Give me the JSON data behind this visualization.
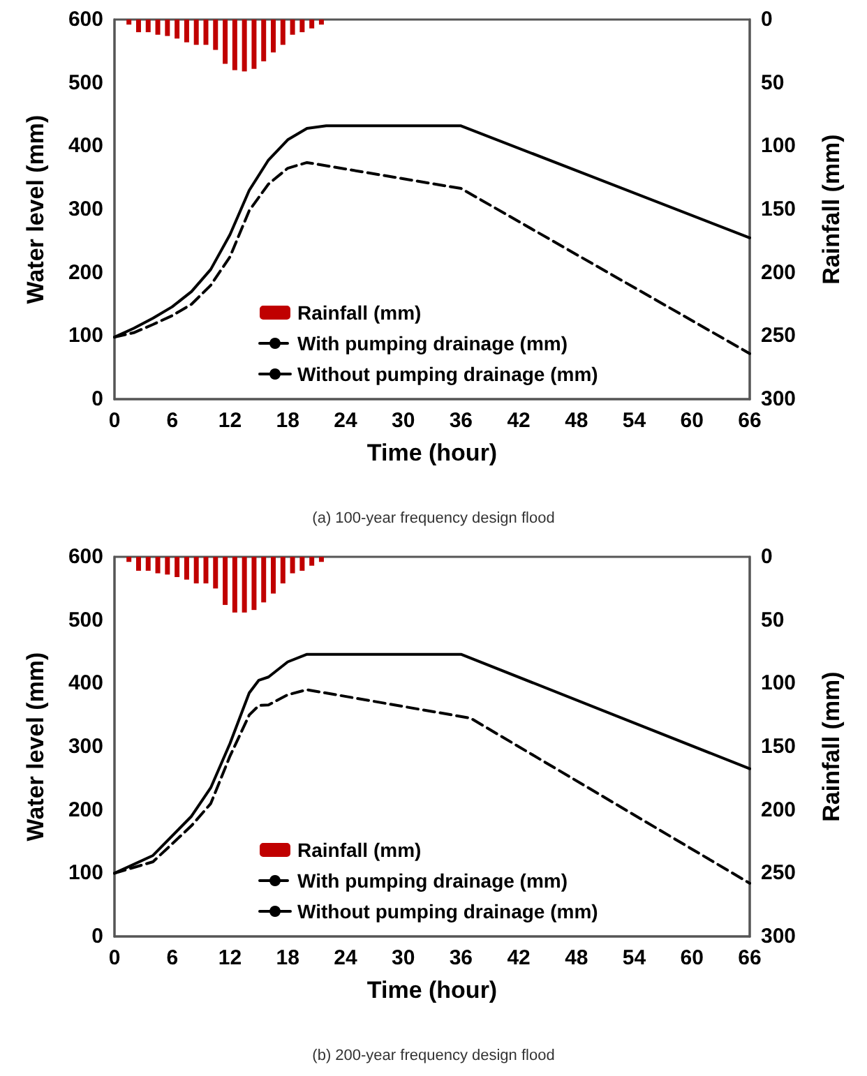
{
  "chart_data": [
    {
      "type": "line",
      "xlabel": "Time (hour)",
      "ylabel": "Water level (mm)",
      "y2label": "Rainfall (mm)",
      "xlim": [
        0,
        66
      ],
      "xticks": [
        0,
        6,
        12,
        18,
        24,
        30,
        36,
        42,
        48,
        54,
        60,
        66
      ],
      "ylim": [
        0,
        600
      ],
      "yticks": [
        0,
        100,
        200,
        300,
        400,
        500,
        600
      ],
      "y2lim": [
        300,
        0
      ],
      "y2ticks": [
        0,
        50,
        100,
        150,
        200,
        250,
        300
      ],
      "legend": "bottom left",
      "grid": false,
      "marker": "none",
      "annotations": [
        "(a) 100-year frequency design flood"
      ],
      "series": [
        {
          "name": "Rainfall (mm)",
          "type": "bar",
          "axis": "y2",
          "color": "#c00000",
          "x": [
            1.5,
            2.5,
            3.5,
            4.5,
            5.5,
            6.5,
            7.5,
            8.5,
            9.5,
            10.5,
            11.5,
            12.5,
            13.5,
            14.5,
            15.5,
            16.5,
            17.5,
            18.5,
            19.5,
            20.5,
            21.5
          ],
          "values": [
            4,
            10,
            10,
            12,
            13,
            15,
            18,
            20,
            20,
            24,
            35,
            40,
            41,
            39,
            33,
            26,
            20,
            12,
            10,
            7,
            4
          ]
        },
        {
          "name": "With pumping drainage (mm)",
          "line_style": "dashed",
          "color": "#000000",
          "x": [
            0,
            2,
            4,
            6,
            8,
            10,
            12,
            14,
            16,
            18,
            20,
            36,
            66
          ],
          "values": [
            98,
            105,
            118,
            132,
            150,
            180,
            225,
            298,
            340,
            365,
            374,
            333,
            72
          ]
        },
        {
          "name": "Without pumping drainage (mm)",
          "line_style": "solid",
          "color": "#000000",
          "x": [
            0,
            2,
            4,
            6,
            8,
            10,
            12,
            14,
            16,
            18,
            20,
            22,
            36,
            66
          ],
          "values": [
            98,
            112,
            128,
            146,
            170,
            205,
            260,
            330,
            378,
            410,
            428,
            432,
            432,
            255
          ]
        }
      ]
    },
    {
      "type": "line",
      "xlabel": "Time (hour)",
      "ylabel": "Water level (mm)",
      "y2label": "Rainfall (mm)",
      "xlim": [
        0,
        66
      ],
      "xticks": [
        0,
        6,
        12,
        18,
        24,
        30,
        36,
        42,
        48,
        54,
        60,
        66
      ],
      "ylim": [
        0,
        600
      ],
      "yticks": [
        0,
        100,
        200,
        300,
        400,
        500,
        600
      ],
      "y2lim": [
        300,
        0
      ],
      "y2ticks": [
        0,
        50,
        100,
        150,
        200,
        250,
        300
      ],
      "legend": "bottom left",
      "grid": false,
      "marker": "none",
      "annotations": [
        "(b) 200-year frequency design flood"
      ],
      "series": [
        {
          "name": "Rainfall (mm)",
          "type": "bar",
          "axis": "y2",
          "color": "#c00000",
          "x": [
            1.5,
            2.5,
            3.5,
            4.5,
            5.5,
            6.5,
            7.5,
            8.5,
            9.5,
            10.5,
            11.5,
            12.5,
            13.5,
            14.5,
            15.5,
            16.5,
            17.5,
            18.5,
            19.5,
            20.5,
            21.5
          ],
          "values": [
            4,
            11,
            11,
            13,
            14,
            16,
            18,
            21,
            21,
            25,
            38,
            44,
            44,
            42,
            36,
            29,
            21,
            13,
            11,
            7,
            4
          ]
        },
        {
          "name": "With pumping drainage (mm)",
          "line_style": "dashed",
          "color": "#000000",
          "x": [
            0,
            4,
            8,
            10,
            12,
            14,
            15,
            16,
            18,
            20,
            37,
            66
          ],
          "values": [
            100,
            118,
            175,
            210,
            285,
            350,
            365,
            366,
            382,
            390,
            345,
            84
          ]
        },
        {
          "name": "Without pumping drainage (mm)",
          "line_style": "solid",
          "color": "#000000",
          "x": [
            0,
            4,
            8,
            10,
            12,
            14,
            15,
            16,
            18,
            20,
            36,
            66
          ],
          "values": [
            100,
            128,
            190,
            235,
            305,
            385,
            405,
            410,
            434,
            446,
            446,
            265
          ]
        }
      ]
    }
  ]
}
